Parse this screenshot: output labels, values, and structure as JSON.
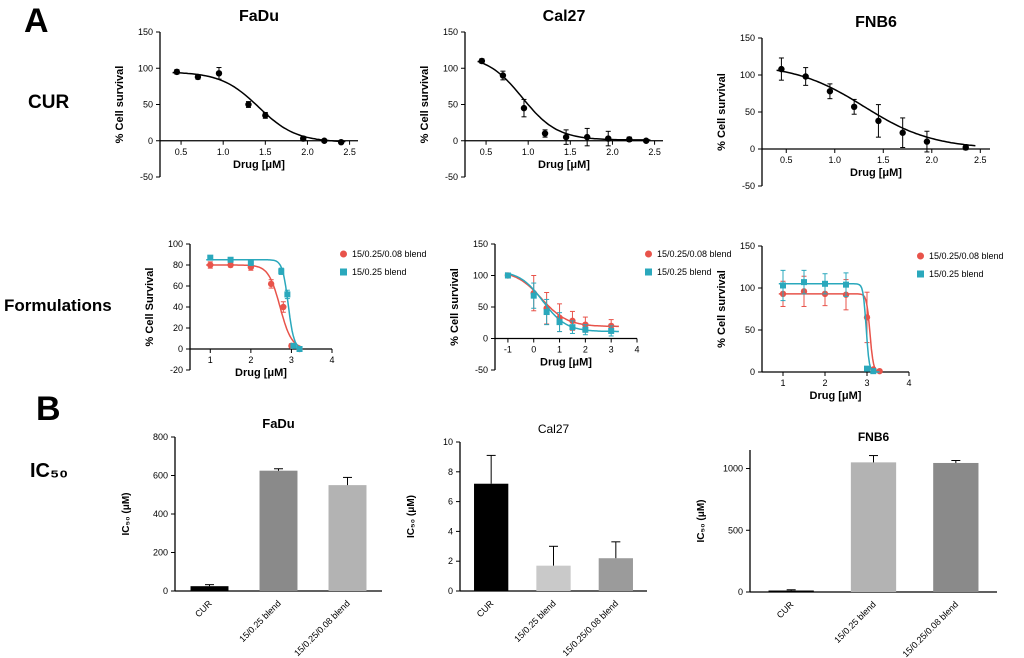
{
  "labels": {
    "panel_a": "A",
    "panel_b": "B",
    "cur": "CUR",
    "formulations": "Formulations",
    "ic50": "IC₅₀"
  },
  "palette": {
    "blend_red": "#e8534a",
    "blend_teal": "#2aa8bc",
    "cur_black": "#000000"
  },
  "chart_data": [
    {
      "id": "cur-fadu",
      "type": "scatter",
      "title": "FaDu",
      "title_size": 16,
      "xlabel": "Drug [μM]",
      "ylabel": "% Cell survival",
      "xlim": [
        0.25,
        2.6
      ],
      "ylim": [
        -50,
        150
      ],
      "x_axis_at": 0,
      "xticks": [
        0.5,
        1,
        1.5,
        2,
        2.5
      ],
      "xtick_labels": [
        "0.5",
        "1.0",
        "1.5",
        "2.0",
        "2.5"
      ],
      "yticks": [
        -50,
        0,
        50,
        100,
        150
      ],
      "series": [
        {
          "name": "CUR",
          "color": "#000000",
          "marker": "circle",
          "x": [
            0.45,
            0.7,
            0.95,
            1.3,
            1.5,
            1.95,
            2.2,
            2.4
          ],
          "y": [
            95,
            88,
            93,
            50,
            35,
            3,
            0,
            -2
          ],
          "err": [
            3,
            3,
            8,
            4,
            4,
            3,
            2,
            2
          ],
          "fit": {
            "top": 95,
            "bottom": -2,
            "xmid": 1.42,
            "slope": 4.5,
            "xrange": [
              0.4,
              2.45
            ]
          }
        }
      ]
    },
    {
      "id": "cur-cal27",
      "type": "scatter",
      "title": "Cal27",
      "title_size": 16,
      "xlabel": "Drug [μM]",
      "ylabel": "% Cell survival",
      "xlim": [
        0.25,
        2.6
      ],
      "ylim": [
        -50,
        150
      ],
      "x_axis_at": 0,
      "xticks": [
        0.5,
        1,
        1.5,
        2,
        2.5
      ],
      "xtick_labels": [
        "0.5",
        "1.0",
        "1.5",
        "2.0",
        "2.5"
      ],
      "yticks": [
        -50,
        0,
        50,
        100,
        150
      ],
      "series": [
        {
          "name": "CUR",
          "color": "#000000",
          "marker": "circle",
          "x": [
            0.45,
            0.7,
            0.95,
            1.2,
            1.45,
            1.7,
            1.95,
            2.2,
            2.4
          ],
          "y": [
            110,
            90,
            45,
            10,
            5,
            5,
            3,
            2,
            0
          ],
          "err": [
            3,
            6,
            12,
            5,
            10,
            12,
            10,
            3,
            2
          ],
          "fit": {
            "top": 118,
            "bottom": 1,
            "xmid": 0.93,
            "slope": 4.8,
            "xrange": [
              0.4,
              2.45
            ]
          }
        }
      ]
    },
    {
      "id": "cur-fnb6",
      "type": "scatter",
      "title": "FNB6",
      "title_size": 16,
      "xlabel": "Drug [μM]",
      "ylabel": "% Cell survival",
      "xlim": [
        0.25,
        2.6
      ],
      "ylim": [
        -50,
        150
      ],
      "x_axis_at": 0,
      "xticks": [
        0.5,
        1,
        1.5,
        2,
        2.5
      ],
      "xtick_labels": [
        "0.5",
        "1.0",
        "1.5",
        "2.0",
        "2.5"
      ],
      "yticks": [
        -50,
        0,
        50,
        100,
        150
      ],
      "series": [
        {
          "name": "CUR",
          "color": "#000000",
          "marker": "circle",
          "x": [
            0.45,
            0.7,
            0.95,
            1.2,
            1.45,
            1.7,
            1.95,
            2.35
          ],
          "y": [
            108,
            98,
            78,
            57,
            38,
            22,
            10,
            2
          ],
          "err": [
            15,
            12,
            10,
            10,
            22,
            20,
            14,
            3
          ],
          "fit": {
            "top": 115,
            "bottom": 0,
            "xmid": 1.3,
            "slope": 2.8,
            "xrange": [
              0.4,
              2.45
            ]
          }
        }
      ]
    },
    {
      "id": "form-fadu",
      "type": "scatter",
      "title": "",
      "xlabel": "Drug [μM]",
      "ylabel": "% Cell Survival",
      "legend": true,
      "xlim": [
        0.5,
        4
      ],
      "ylim": [
        -20,
        100
      ],
      "x_axis_at": 0,
      "xticks": [
        1,
        2,
        3,
        4
      ],
      "xtick_labels": [
        "1",
        "2",
        "3",
        "4"
      ],
      "yticks": [
        -20,
        0,
        20,
        40,
        60,
        80,
        100
      ],
      "series": [
        {
          "name": "15/0.25/0.08 blend",
          "color": "#e8534a",
          "marker": "circle",
          "x": [
            1,
            1.5,
            2,
            2.5,
            2.8,
            3,
            3.2
          ],
          "y": [
            80,
            80,
            78,
            62,
            40,
            3,
            0
          ],
          "err": [
            3,
            2,
            3,
            4,
            5,
            2,
            1
          ],
          "fit": {
            "top": 80,
            "bottom": 0,
            "xmid": 2.72,
            "slope": 7,
            "xrange": [
              0.9,
              3.25
            ]
          }
        },
        {
          "name": "15/0.25 blend",
          "color": "#2aa8bc",
          "marker": "square",
          "x": [
            1,
            1.5,
            2,
            2.75,
            2.9,
            3.05,
            3.2
          ],
          "y": [
            87,
            85,
            82,
            74,
            52,
            3,
            0
          ],
          "err": [
            2,
            2,
            2,
            3,
            4,
            2,
            1
          ],
          "fit": {
            "top": 85,
            "bottom": 0,
            "xmid": 2.92,
            "slope": 14,
            "xrange": [
              0.9,
              3.25
            ]
          }
        }
      ]
    },
    {
      "id": "form-cal27",
      "type": "scatter",
      "title": "",
      "xlabel": "Drug [μM]",
      "ylabel": "% Cell survival",
      "legend": true,
      "xlim": [
        -1.5,
        4
      ],
      "ylim": [
        -50,
        150
      ],
      "x_axis_at": 0,
      "xticks": [
        -1,
        0,
        1,
        2,
        3,
        4
      ],
      "xtick_labels": [
        "-1",
        "0",
        "1",
        "2",
        "3",
        "4"
      ],
      "yticks": [
        -50,
        0,
        50,
        100,
        150
      ],
      "series": [
        {
          "name": "15/0.25/0.08 blend",
          "color": "#e8534a",
          "marker": "circle",
          "x": [
            -1,
            0,
            0.5,
            1,
            1.5,
            2,
            3
          ],
          "y": [
            100,
            72,
            48,
            33,
            28,
            22,
            20
          ],
          "err": [
            3,
            28,
            25,
            22,
            15,
            12,
            10
          ],
          "fit": {
            "top": 108,
            "bottom": 19,
            "xmid": 0.3,
            "slope": 2.0,
            "xrange": [
              -1.1,
              3.3
            ]
          }
        },
        {
          "name": "15/0.25 blend",
          "color": "#2aa8bc",
          "marker": "square",
          "x": [
            -1,
            0,
            0.5,
            1,
            1.5,
            2,
            3
          ],
          "y": [
            100,
            68,
            42,
            26,
            18,
            14,
            12
          ],
          "err": [
            3,
            20,
            20,
            15,
            10,
            8,
            8
          ],
          "fit": {
            "top": 108,
            "bottom": 11,
            "xmid": 0.35,
            "slope": 2.2,
            "xrange": [
              -1.1,
              3.3
            ]
          }
        }
      ]
    },
    {
      "id": "form-fnb6",
      "type": "scatter",
      "title": "",
      "xlabel": "Drug [μM]",
      "ylabel": "% Cell survival",
      "legend": true,
      "xlim": [
        0.5,
        4
      ],
      "ylim": [
        0,
        150
      ],
      "x_axis_at": 0,
      "xticks": [
        1,
        2,
        3,
        4
      ],
      "xtick_labels": [
        "1",
        "2",
        "3",
        "4"
      ],
      "yticks": [
        0,
        50,
        100,
        150
      ],
      "series": [
        {
          "name": "15/0.25/0.08 blend",
          "color": "#e8534a",
          "marker": "circle",
          "x": [
            1,
            1.5,
            2,
            2.5,
            3,
            3.15,
            3.3
          ],
          "y": [
            93,
            96,
            93,
            92,
            65,
            3,
            1
          ],
          "err": [
            15,
            18,
            14,
            18,
            30,
            2,
            1
          ],
          "fit": {
            "top": 93,
            "bottom": 0,
            "xmid": 3.07,
            "slope": 25,
            "xrange": [
              0.9,
              3.35
            ]
          }
        },
        {
          "name": "15/0.25 blend",
          "color": "#2aa8bc",
          "marker": "square",
          "x": [
            1,
            1.5,
            2,
            2.5,
            3,
            3.15
          ],
          "y": [
            103,
            107,
            105,
            104,
            4,
            1
          ],
          "err": [
            18,
            14,
            12,
            14,
            2,
            1
          ],
          "fit": {
            "top": 105,
            "bottom": 0,
            "xmid": 2.98,
            "slope": 28,
            "xrange": [
              0.9,
              3.3
            ]
          }
        }
      ]
    },
    {
      "id": "ic50-fadu",
      "type": "bar",
      "title": "FaDu",
      "title_size": 13,
      "ylabel": "IC₅₀ (μM)",
      "ylim": [
        0,
        800
      ],
      "yticks": [
        0,
        200,
        400,
        600,
        800
      ],
      "categories": [
        "CUR",
        "15/0.25 blend",
        "15/0.25/0.08 blend"
      ],
      "values": [
        25,
        625,
        550
      ],
      "errors": [
        8,
        10,
        40
      ],
      "bar_colors": [
        "#000000",
        "#8a8a8a",
        "#b3b3b3"
      ]
    },
    {
      "id": "ic50-cal27",
      "type": "bar",
      "title": "Cal27",
      "title_size": 12,
      "title_weight": "400",
      "ylabel": "IC₅₀ (μM)",
      "ylim": [
        0,
        10
      ],
      "yticks": [
        0,
        2,
        4,
        6,
        8,
        10
      ],
      "categories": [
        "CUR",
        "15/0.25 blend",
        "15/0.25/0.08 blend"
      ],
      "values": [
        7.2,
        1.7,
        2.2
      ],
      "errors": [
        1.9,
        1.3,
        1.1
      ],
      "bar_colors": [
        "#000000",
        "#c9c9c9",
        "#9b9b9b"
      ]
    },
    {
      "id": "ic50-fnb6",
      "type": "bar",
      "title": "FNB6",
      "title_size": 12,
      "ylabel": "IC₅₀ (μM)",
      "ylim": [
        0,
        1150
      ],
      "yticks": [
        0,
        500,
        1000
      ],
      "categories": [
        "CUR",
        "15/0.25 blend",
        "15/0.25/0.08 blend"
      ],
      "values": [
        12,
        1050,
        1045
      ],
      "errors": [
        6,
        55,
        20
      ],
      "bar_colors": [
        "#000000",
        "#b3b3b3",
        "#8a8a8a"
      ]
    }
  ]
}
